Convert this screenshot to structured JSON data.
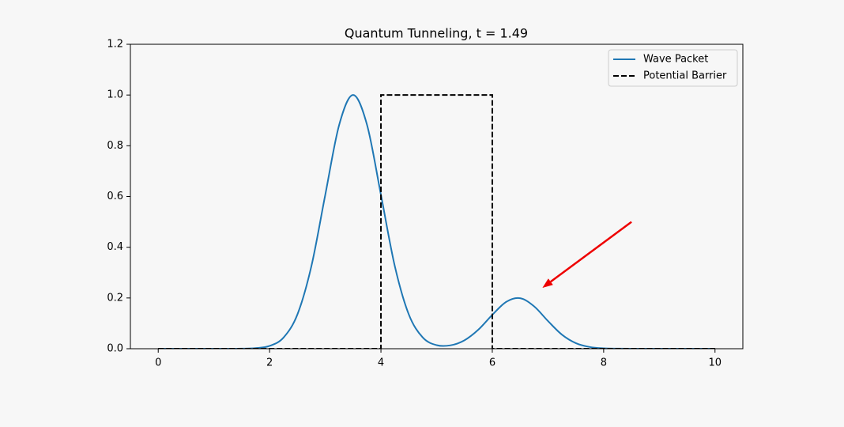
{
  "chart_data": {
    "type": "line",
    "title": "Quantum Tunneling, t = 1.49",
    "xlim": [
      -0.5,
      10.5
    ],
    "ylim": [
      0,
      1.2
    ],
    "xticks": [
      0,
      2,
      4,
      6,
      8,
      10
    ],
    "yticks": [
      {
        "value": 0,
        "label": "0.0"
      },
      0.2,
      0.4,
      0.6,
      0.8,
      {
        "value": 1,
        "label": "1.0"
      },
      1.2
    ],
    "grid": false,
    "legend": "upper right",
    "series": [
      {
        "name": "Wave Packet",
        "color": "#1f77b4",
        "linestyle": "solid",
        "interpolation": "smooth",
        "x": [
          0,
          0.25,
          0.5,
          0.75,
          1,
          1.25,
          1.5,
          1.75,
          2,
          2.25,
          2.5,
          2.75,
          3,
          3.25,
          3.5,
          3.75,
          4,
          4.25,
          4.5,
          4.75,
          5,
          5.25,
          5.5,
          5.75,
          6,
          6.25,
          6.5,
          6.75,
          7,
          7.25,
          7.5,
          7.75,
          8,
          8.25,
          8.5,
          8.75,
          9,
          9.25,
          9.5,
          9.75,
          10
        ],
        "values": [
          0,
          0,
          0,
          0,
          0,
          0,
          0.0003,
          0.0022,
          0.0111,
          0.0439,
          0.1353,
          0.3247,
          0.6065,
          0.8825,
          1,
          0.8825,
          0.6065,
          0.3247,
          0.1354,
          0.0445,
          0.0141,
          0.0134,
          0.0332,
          0.0751,
          0.1334,
          0.1846,
          0.199,
          0.1671,
          0.1092,
          0.0556,
          0.0221,
          0.0068,
          0.0016,
          0.0003,
          0,
          0,
          0,
          0,
          0,
          0,
          0
        ]
      },
      {
        "name": "Potential Barrier",
        "color": "#000000",
        "linestyle": "dashed",
        "interpolation": "linear",
        "x": [
          0,
          4,
          4,
          6,
          6,
          10
        ],
        "values": [
          0,
          0,
          1,
          1,
          0,
          0
        ]
      }
    ],
    "arrow": {
      "from": [
        8.5,
        0.5
      ],
      "to": [
        6.9,
        0.24
      ],
      "color": "#ee0000"
    }
  }
}
